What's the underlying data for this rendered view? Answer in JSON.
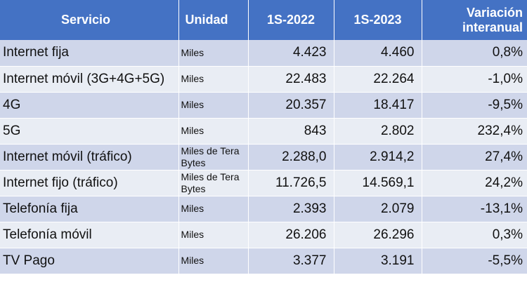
{
  "colors": {
    "header_bg": "#4472c4",
    "row_odd_bg": "#cfd6ea",
    "row_even_bg": "#e9edf4",
    "text": "#111111",
    "header_text": "#ffffff"
  },
  "chart_data": {
    "type": "table",
    "columns": [
      "Servicio",
      "Unidad",
      "1S-2022",
      "1S-2023",
      "Variación interanual"
    ],
    "rows": [
      {
        "servicio": "Internet fija",
        "unidad": "Miles",
        "v2022": "4.423",
        "v2023": "4.460",
        "variacion": "0,8%"
      },
      {
        "servicio": "Internet móvil (3G+4G+5G)",
        "unidad": "Miles",
        "v2022": "22.483",
        "v2023": "22.264",
        "variacion": "-1,0%"
      },
      {
        "servicio": "4G",
        "unidad": "Miles",
        "v2022": "20.357",
        "v2023": "18.417",
        "variacion": "-9,5%"
      },
      {
        "servicio": "5G",
        "unidad": "Miles",
        "v2022": "843",
        "v2023": "2.802",
        "variacion": "232,4%"
      },
      {
        "servicio": "Internet móvil (tráfico)",
        "unidad": "Miles de Tera Bytes",
        "v2022": "2.288,0",
        "v2023": "2.914,2",
        "variacion": "27,4%"
      },
      {
        "servicio": "Internet fijo (tráfico)",
        "unidad": "Miles de Tera Bytes",
        "v2022": "11.726,5",
        "v2023": "14.569,1",
        "variacion": "24,2%"
      },
      {
        "servicio": "Telefonía fija",
        "unidad": "Miles",
        "v2022": "2.393",
        "v2023": "2.079",
        "variacion": "-13,1%"
      },
      {
        "servicio": "Telefonía móvil",
        "unidad": "Miles",
        "v2022": "26.206",
        "v2023": "26.296",
        "variacion": "0,3%"
      },
      {
        "servicio": "TV Pago",
        "unidad": "Miles",
        "v2022": "3.377",
        "v2023": "3.191",
        "variacion": "-5,5%"
      }
    ]
  }
}
